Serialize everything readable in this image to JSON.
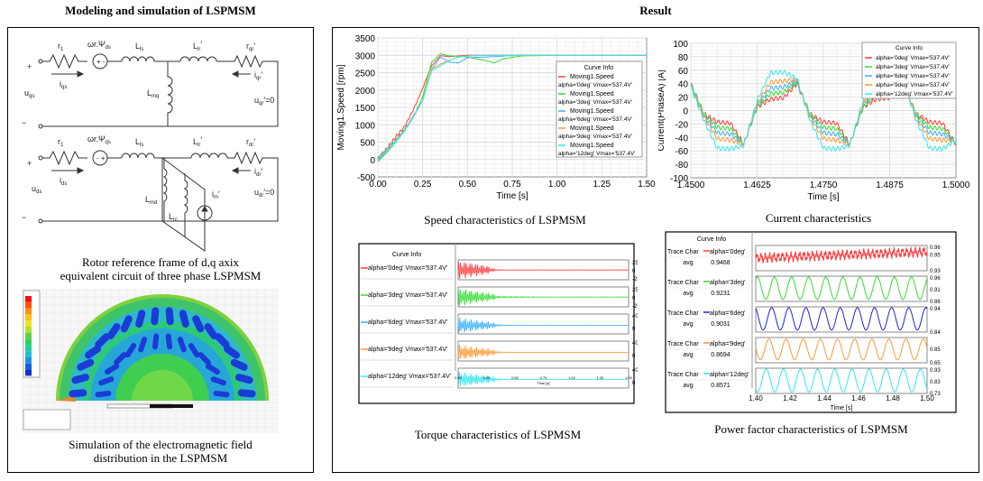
{
  "left_panel": {
    "title": "Modeling and simulation of LSPMSM",
    "circuit_caption_1": "Rotor reference frame of d,q axix",
    "circuit_caption_2": "equivalent circuit of three phase LSPMSM",
    "field_caption_1": "Simulation of the electromagnetic field",
    "field_caption_2": "distribution in the LSPMSM",
    "q_circuit": {
      "plus": "+",
      "minus": "−",
      "r1": "r",
      "r1_sub": "1",
      "emf": "ωr.Ψ",
      "emf_sub": "ds",
      "emf_sign": "+ -",
      "lls": "L",
      "lls_sub": "ls",
      "llr": "L",
      "llr_sub": "lr",
      "rr": "r",
      "rr_sub": "qr",
      "is": "i",
      "is_sub": "qs",
      "ir": "i",
      "ir_sub": "qr",
      "us": "u",
      "us_sub": "qs",
      "lm": "L",
      "lm_sub": "mq",
      "ur": "u",
      "ur_sub": "qr",
      "ur_tail": "′=0",
      "prime": "′"
    },
    "d_circuit": {
      "plus": "+",
      "minus": "−",
      "r1": "r",
      "r1_sub": "1",
      "emf": "ωr.Ψ",
      "emf_sub": "qs",
      "emf_sign": "- +",
      "lls": "L",
      "lls_sub": "ls",
      "llr": "L",
      "llr_sub": "lr",
      "rr": "r",
      "rr_sub": "dr",
      "is": "i",
      "is_sub": "ds",
      "ir": "i",
      "ir_sub": "dr",
      "us": "u",
      "us_sub": "ds",
      "lm": "L",
      "lm_sub": "md",
      "lrc": "L",
      "lrc_sub": "rc",
      "im": "i",
      "im_sub": "m",
      "ur": "u",
      "ur_sub": "dr",
      "ur_tail": "′=0",
      "prime": "′"
    }
  },
  "right_panel": {
    "title": "Result",
    "speed_caption": "Speed characteristics of LSPMSM",
    "current_caption": "Current characteristics",
    "torque_caption": "Torque characteristics of LSPMSM",
    "pf_caption": "Power factor characteristics of LSPMSM"
  },
  "colors": {
    "0deg": "#ff3b3b",
    "3deg": "#33dd33",
    "6deg": "#3ab0ff",
    "9deg": "#ff9933",
    "12deg": "#33e6f0",
    "6deg_pf": "#2222dd"
  },
  "chart_data": [
    {
      "id": "speed",
      "type": "line",
      "xlabel": "Time [s]",
      "ylabel": "Moving1.Speed [rpm]",
      "xlim": [
        0,
        1.5
      ],
      "ylim": [
        -500,
        3500
      ],
      "xticks": [
        "0.00",
        "0.25",
        "0.50",
        "0.75",
        "1.00",
        "1.25",
        "1.50"
      ],
      "yticks": [
        "-500",
        "0",
        "500",
        "1000",
        "1500",
        "2000",
        "2500",
        "3000",
        "3500"
      ],
      "grid": true,
      "legend_title": "Curve Info",
      "legend_placement": "right",
      "x": [
        0,
        0.05,
        0.1,
        0.15,
        0.2,
        0.25,
        0.3,
        0.35,
        0.4,
        0.45,
        0.5,
        0.6,
        0.65,
        0.7,
        0.8,
        1.0,
        1.5
      ],
      "series": [
        {
          "name": "Moving1.Speed",
          "sub": "alpha='0deg' Vmax='537.4V'",
          "color": "#ff3b3b",
          "values": [
            0,
            300,
            650,
            950,
            1450,
            2050,
            2700,
            2990,
            2960,
            2980,
            3000,
            3000,
            3000,
            3000,
            3000,
            3000,
            3000
          ]
        },
        {
          "name": "Moving1.Speed",
          "sub": "alpha='3deg' Vmax='537.4V'",
          "color": "#33dd33",
          "values": [
            0,
            250,
            550,
            850,
            1250,
            1800,
            2800,
            3050,
            2980,
            2970,
            2950,
            2850,
            2780,
            2900,
            2980,
            3000,
            3000
          ]
        },
        {
          "name": "Moving1.Speed",
          "sub": "alpha='6deg' Vmax='537.4V'",
          "color": "#3ab0ff",
          "values": [
            0,
            250,
            550,
            850,
            1250,
            1700,
            2600,
            2950,
            2800,
            2780,
            2930,
            2950,
            2960,
            2980,
            3000,
            3000,
            3000
          ]
        },
        {
          "name": "Moving1.Speed",
          "sub": "alpha='9deg' Vmax='537.4V'",
          "color": "#ff9933",
          "values": [
            0,
            250,
            550,
            850,
            1250,
            1700,
            2600,
            2750,
            2850,
            2950,
            2980,
            3000,
            3000,
            3000,
            3000,
            3000,
            3000
          ]
        },
        {
          "name": "Moving1.Speed",
          "sub": "alpha='12deg' Vmax='537.4V'",
          "color": "#33e6f0",
          "values": [
            0,
            250,
            500,
            850,
            1250,
            1700,
            2550,
            2700,
            2850,
            2950,
            2980,
            3000,
            3000,
            3000,
            3000,
            3000,
            3000
          ]
        }
      ]
    },
    {
      "id": "current",
      "type": "line",
      "xlabel": "Time [s]",
      "ylabel": "Current(PhaseA) [A]",
      "xlim": [
        1.45,
        1.5
      ],
      "ylim": [
        -100,
        100
      ],
      "xticks": [
        "1.4500",
        "1.4625",
        "1.4750",
        "1.4875",
        "1.5000"
      ],
      "yticks": [
        "-100",
        "-80",
        "-60",
        "-40",
        "-20",
        "0",
        "20",
        "40",
        "60",
        "80",
        "100"
      ],
      "grid": true,
      "legend_title": "Curve Info",
      "legend_placement": "top-right",
      "x": [
        1.45,
        1.4525,
        1.455,
        1.4575,
        1.46,
        1.4625,
        1.465,
        1.4675,
        1.47,
        1.4725,
        1.475,
        1.4775,
        1.48,
        1.4825,
        1.485,
        1.4875,
        1.49,
        1.4925,
        1.495,
        1.4975,
        1.5
      ],
      "series": [
        {
          "name": "alpha='0deg' Vmax='537.4V'",
          "color": "#ff3b3b",
          "values": [
            40,
            -5,
            -17,
            -19,
            -50,
            5,
            17,
            19,
            40,
            -5,
            -17,
            -19,
            -50,
            5,
            17,
            19,
            40,
            -5,
            -17,
            -19,
            -50
          ]
        },
        {
          "name": "alpha='3deg' Vmax='537.4V'",
          "color": "#33dd33",
          "values": [
            40,
            -5,
            -25,
            -27,
            -50,
            5,
            25,
            27,
            42,
            -5,
            -25,
            -27,
            -50,
            5,
            25,
            27,
            42,
            -5,
            -25,
            -27,
            -48
          ]
        },
        {
          "name": "alpha='6deg' Vmax='537.4V'",
          "color": "#3ab0ff",
          "values": [
            38,
            -8,
            -33,
            -35,
            -50,
            8,
            33,
            35,
            44,
            -8,
            -33,
            -35,
            -50,
            8,
            33,
            35,
            44,
            -8,
            -33,
            -35,
            -46
          ]
        },
        {
          "name": "alpha='9deg' Vmax='537.4V'",
          "color": "#ff9933",
          "values": [
            36,
            -10,
            -42,
            -44,
            -50,
            10,
            42,
            44,
            46,
            -10,
            -42,
            -44,
            -50,
            10,
            42,
            44,
            46,
            -10,
            -42,
            -44,
            -45
          ]
        },
        {
          "name": "alpha='12deg' Vmax='537.4V'",
          "color": "#33e6f0",
          "values": [
            35,
            -15,
            -56,
            -57,
            -52,
            15,
            56,
            57,
            48,
            -15,
            -56,
            -57,
            -52,
            15,
            56,
            57,
            48,
            -15,
            -56,
            -57,
            -44
          ]
        }
      ]
    },
    {
      "id": "torque",
      "type": "line",
      "xlabel": "Time [s]",
      "xlim": [
        0,
        1.5
      ],
      "legend_title": "Curve Info",
      "xticks": [
        "0.00",
        "0.25",
        "0.50",
        "0.75",
        "1.00",
        "1.25",
        "1.50"
      ],
      "x": [
        0,
        0.05,
        0.1,
        0.15,
        0.2,
        0.25,
        0.3,
        0.35,
        0.4,
        0.5,
        0.6,
        0.75,
        1.0,
        1.5
      ],
      "panels": [
        {
          "name": "alpha='0deg' Vmax='537.4V'",
          "color": "#ff3b3b",
          "yticks": [
            "250",
            "0",
            "-250"
          ],
          "ylim": [
            -300,
            350
          ],
          "steady": 20,
          "amplitude": [
            320,
            300,
            260,
            220,
            180,
            160,
            60,
            20,
            8,
            5,
            5,
            5,
            5,
            5
          ]
        },
        {
          "name": "alpha='3deg' Vmax='537.4V'",
          "color": "#33dd33",
          "yticks": [
            "250",
            "0",
            "-250"
          ],
          "ylim": [
            -300,
            350
          ],
          "steady": 20,
          "amplitude": [
            320,
            300,
            260,
            220,
            180,
            160,
            120,
            40,
            30,
            25,
            20,
            8,
            5,
            5
          ]
        },
        {
          "name": "alpha='6deg' Vmax='537.4V'",
          "color": "#3ab0ff",
          "yticks": [
            "400",
            "0"
          ],
          "ylim": [
            -300,
            450
          ],
          "steady": 20,
          "amplitude": [
            320,
            300,
            260,
            220,
            180,
            160,
            120,
            40,
            20,
            8,
            5,
            5,
            5,
            5
          ]
        },
        {
          "name": "alpha='9deg' Vmax='537.4V'",
          "color": "#ff9933",
          "yticks": [
            "400",
            "0"
          ],
          "ylim": [
            -300,
            450
          ],
          "steady": 20,
          "amplitude": [
            320,
            300,
            260,
            220,
            180,
            160,
            120,
            40,
            20,
            8,
            5,
            5,
            5,
            5
          ]
        },
        {
          "name": "alpha='12deg' Vmax='537.4V'",
          "color": "#33e6f0",
          "yticks": [
            "400",
            "0"
          ],
          "ylim": [
            -300,
            450
          ],
          "steady": 20,
          "amplitude": [
            320,
            300,
            260,
            220,
            180,
            160,
            120,
            40,
            20,
            8,
            5,
            5,
            5,
            5
          ]
        }
      ]
    },
    {
      "id": "power_factor",
      "type": "line",
      "xlabel": "Time [s]",
      "xlim": [
        1.4,
        1.5
      ],
      "legend_title": "Curve Info",
      "xticks": [
        "1.40",
        "1.42",
        "1.44",
        "1.46",
        "1.48",
        "1.50"
      ],
      "ripple_period_s": 0.01,
      "panels": [
        {
          "trace": "Trace Char",
          "name": "alpha='0deg'",
          "avg_label": "avg",
          "avg": "0.9468",
          "color": "#ff3b3b",
          "yticks": [
            "0.96",
            "0.95",
            "0.93"
          ],
          "ylim": [
            0.93,
            0.96
          ],
          "min": 0.942,
          "max": 0.956
        },
        {
          "trace": "Trace Char",
          "name": "alpha='3deg'",
          "avg_label": "avg",
          "avg": "0.9231",
          "color": "#33dd33",
          "yticks": [
            "0.96",
            "0.91",
            "0.86"
          ],
          "ylim": [
            0.86,
            0.96
          ],
          "min": 0.865,
          "max": 0.96
        },
        {
          "trace": "Trace Char",
          "name": "alpha='6deg'",
          "avg_label": "avg",
          "avg": "0.9031",
          "color": "#2222dd",
          "yticks": [
            "0.94",
            "0.84"
          ],
          "ylim": [
            0.84,
            0.94
          ],
          "min": 0.845,
          "max": 0.94
        },
        {
          "trace": "Trace Char",
          "name": "alpha='9deg'",
          "avg_label": "avg",
          "avg": "0.8694",
          "color": "#ff9933",
          "yticks": [
            "0.85",
            "0.65"
          ],
          "ylim": [
            0.65,
            1.0
          ],
          "min": 0.68,
          "max": 0.99
        },
        {
          "trace": "Trace Char",
          "name": "alpha='12deg'",
          "avg_label": "avg",
          "avg": "0.8571",
          "color": "#33e6f0",
          "yticks": [
            "0.93",
            "0.83",
            "0.73"
          ],
          "ylim": [
            0.73,
            0.93
          ],
          "min": 0.735,
          "max": 0.93
        }
      ]
    }
  ]
}
